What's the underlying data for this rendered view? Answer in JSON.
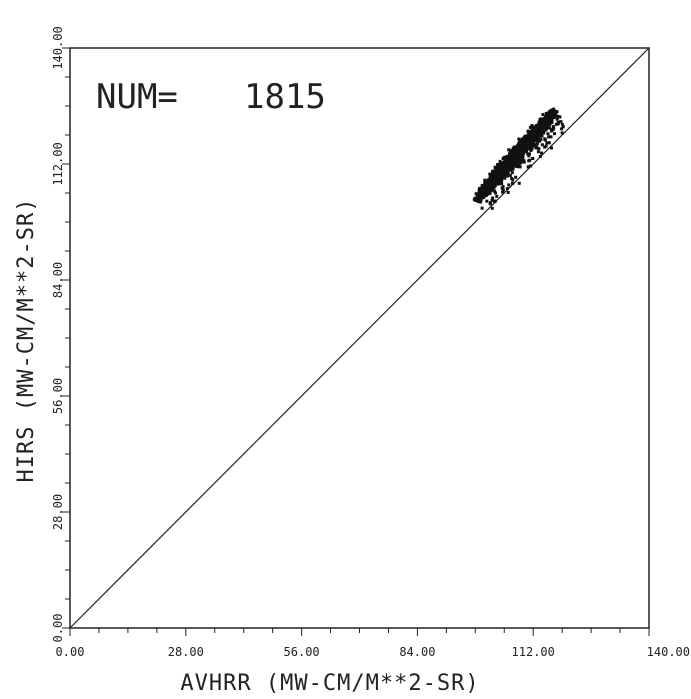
{
  "chart_data": {
    "type": "scatter",
    "title": "",
    "annotation": {
      "label": "NUM=",
      "value": "1815"
    },
    "xlabel": "AVHRR (MW-CM/M**2-SR)",
    "ylabel": "HIRS (MW-CM/M**2-SR)",
    "xlim": [
      0,
      140
    ],
    "ylim": [
      0,
      140
    ],
    "xticks": [
      "0.00",
      "28.00",
      "56.00",
      "84.00",
      "112.00",
      "140.00"
    ],
    "yticks": [
      "0.00",
      "28.00",
      "56.00",
      "84.00",
      "112.00",
      "140.00"
    ],
    "grid": false,
    "reference_line": {
      "type": "identity",
      "from": [
        0,
        0
      ],
      "to": [
        140,
        140
      ]
    },
    "cluster": {
      "count": 1815,
      "x_range": [
        98,
        117
      ],
      "y_range": [
        102.5,
        124.5
      ],
      "centerline_start": [
        98.5,
        103.5
      ],
      "centerline_end": [
        117,
        124.5
      ]
    },
    "colors": {
      "points": "#111111",
      "line": "#222222",
      "frame": "#222222"
    }
  }
}
